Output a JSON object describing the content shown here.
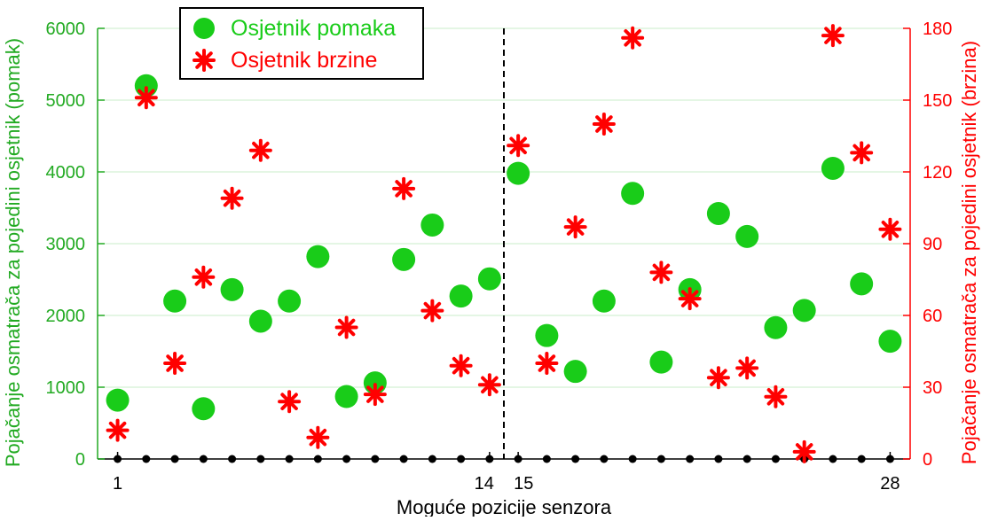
{
  "chart_data": {
    "type": "scatter",
    "xlabel": "Moguće pozicije senzora",
    "ylabel_left": "Pojačanje osmatrača za pojedini osjetnik (pomak)",
    "ylabel_right": "Pojačanje osmatrača za pojedini osjetnik (brzina)",
    "x_tick_labels": [
      "1",
      "14",
      "15",
      "28"
    ],
    "x_tick_positions": [
      1,
      14,
      15,
      28
    ],
    "xlim": [
      0.3,
      28.7
    ],
    "ylim_left": [
      0,
      6000
    ],
    "yticks_left": [
      0,
      1000,
      2000,
      3000,
      4000,
      5000,
      6000
    ],
    "ylim_right": [
      0,
      180
    ],
    "yticks_right": [
      0,
      30,
      60,
      90,
      120,
      150,
      180
    ],
    "divider_x": 14.5,
    "grid": "horizontal",
    "legend_position": "top-left",
    "series": [
      {
        "name": "Osjetnik pomaka",
        "axis": "left",
        "marker": "circle",
        "color": "#19cc19",
        "x": [
          1,
          2,
          3,
          4,
          5,
          6,
          7,
          8,
          9,
          10,
          11,
          12,
          13,
          14,
          15,
          16,
          17,
          18,
          19,
          20,
          21,
          22,
          23,
          24,
          25,
          26,
          27,
          28
        ],
        "y": [
          820,
          5200,
          2200,
          700,
          2360,
          1920,
          2200,
          2820,
          870,
          1060,
          2780,
          3260,
          2270,
          2510,
          3980,
          1720,
          1220,
          2200,
          3700,
          1350,
          2360,
          3420,
          3100,
          1830,
          2070,
          4050,
          2440,
          1640
        ]
      },
      {
        "name": "Osjetnik brzine",
        "axis": "right",
        "marker": "asterisk",
        "color": "#ff0000",
        "x": [
          1,
          2,
          3,
          4,
          5,
          6,
          7,
          8,
          9,
          10,
          11,
          12,
          13,
          14,
          15,
          16,
          17,
          18,
          19,
          20,
          21,
          22,
          23,
          24,
          25,
          26,
          27,
          28
        ],
        "y": [
          12,
          151,
          40,
          76,
          109,
          129,
          24,
          9,
          55,
          27,
          113,
          62,
          39,
          31,
          131,
          40,
          97,
          140,
          176,
          78,
          67,
          34,
          38,
          26,
          3,
          177,
          128,
          96
        ]
      }
    ],
    "sensor_dots": {
      "color": "#000000",
      "x": [
        1,
        2,
        3,
        4,
        5,
        6,
        7,
        8,
        9,
        10,
        11,
        12,
        13,
        14,
        15,
        16,
        17,
        18,
        19,
        20,
        21,
        22,
        23,
        24,
        25,
        26,
        27,
        28
      ]
    }
  },
  "colors": {
    "left_axis": "#22aa22",
    "right_axis": "#ff0000",
    "grid": "#c8ecc8",
    "axis": "#000000"
  }
}
